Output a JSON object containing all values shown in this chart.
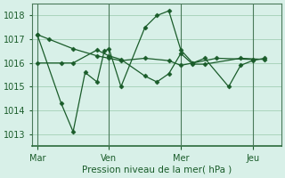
{
  "bg_color": "#d8f0e8",
  "grid_color": "#aad4bc",
  "line_color": "#1a5c2a",
  "marker_color": "#1a5c2a",
  "xlabel": "Pression niveau de la mer( hPa )",
  "ylim": [
    1012.5,
    1018.5
  ],
  "yticks": [
    1013,
    1014,
    1015,
    1016,
    1017,
    1018
  ],
  "xtick_labels": [
    "Mar",
    "Ven",
    "Mer",
    "Jeu"
  ],
  "xtick_positions": [
    0,
    3,
    6,
    9
  ],
  "vline_positions": [
    0,
    3,
    6,
    9
  ],
  "series": [
    [
      1017.2,
      1017.0,
      1016.6,
      1016.3,
      1016.2,
      1016.1,
      1016.2,
      1016.1,
      1015.9,
      1016.0,
      1016.2,
      1016.15
    ],
    [
      1017.2,
      1014.3,
      1013.1,
      1015.6,
      1015.2,
      1016.5,
      1016.6,
      1015.0,
      1017.5,
      1018.0,
      1018.2,
      1016.55,
      1016.0,
      1016.2,
      1015.0,
      1015.9,
      1016.1,
      1016.2
    ],
    [
      1016.0,
      1016.0,
      1016.0,
      1016.55,
      1016.3,
      1016.15,
      1015.45,
      1015.2,
      1015.55,
      1016.4,
      1015.95,
      1015.95,
      1016.2,
      1016.15
    ]
  ],
  "series_x": [
    [
      0,
      0.5,
      1.5,
      2.5,
      3.0,
      3.5,
      4.5,
      5.5,
      6.0,
      6.5,
      7.5,
      9.0
    ],
    [
      0,
      1.0,
      1.5,
      2.0,
      2.5,
      2.8,
      3.0,
      3.5,
      4.5,
      5.0,
      5.5,
      6.0,
      6.5,
      7.0,
      8.0,
      8.5,
      9.0,
      9.5
    ],
    [
      0,
      1.0,
      1.5,
      2.5,
      3.0,
      3.5,
      4.5,
      5.0,
      5.5,
      6.0,
      6.5,
      7.0,
      8.5,
      9.5
    ]
  ],
  "xlim": [
    -0.2,
    10.2
  ]
}
